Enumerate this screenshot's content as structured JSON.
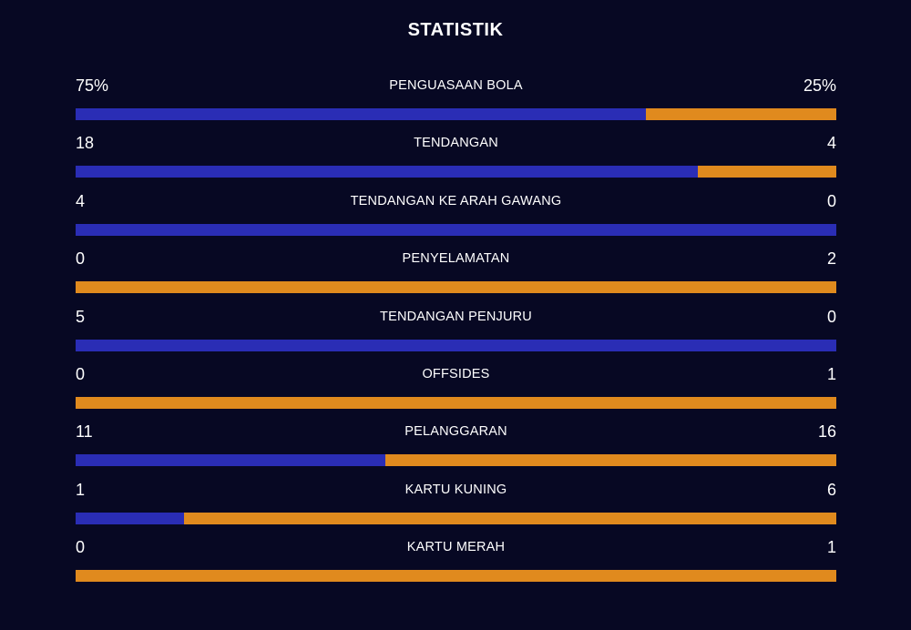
{
  "title": "STATISTIK",
  "colors": {
    "background": "#070823",
    "home": "#2a2db5",
    "away": "#e08a1e",
    "text": "#ffffff"
  },
  "stats": [
    {
      "label": "PENGUASAAN BOLA",
      "home": "75%",
      "away": "25%",
      "home_share": 0.75
    },
    {
      "label": "TENDANGAN",
      "home": "18",
      "away": "4",
      "home_share": 0.818
    },
    {
      "label": "TENDANGAN KE ARAH GAWANG",
      "home": "4",
      "away": "0",
      "home_share": 1.0
    },
    {
      "label": "PENYELAMATAN",
      "home": "0",
      "away": "2",
      "home_share": 0.0
    },
    {
      "label": "TENDANGAN PENJURU",
      "home": "5",
      "away": "0",
      "home_share": 1.0
    },
    {
      "label": "OFFSIDES",
      "home": "0",
      "away": "1",
      "home_share": 0.0
    },
    {
      "label": "PELANGGARAN",
      "home": "11",
      "away": "16",
      "home_share": 0.407
    },
    {
      "label": "KARTU KUNING",
      "home": "1",
      "away": "6",
      "home_share": 0.143
    },
    {
      "label": "KARTU MERAH",
      "home": "0",
      "away": "1",
      "home_share": 0.0
    }
  ]
}
